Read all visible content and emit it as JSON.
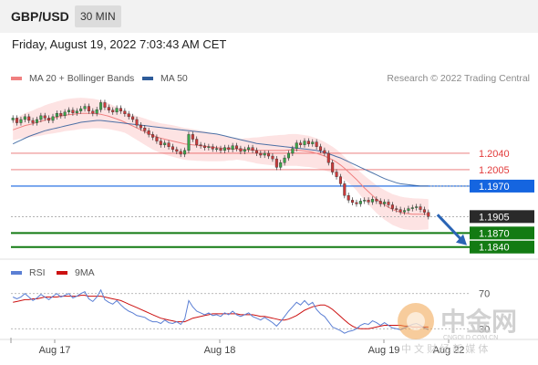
{
  "header": {
    "pair": "GBP/USD",
    "timeframe": "30 MIN"
  },
  "date_line": "Friday, August 19, 2022 7:03:43 AM CET",
  "legend": {
    "bollinger_label": "MA 20 + Bollinger Bands",
    "ma50_label": "MA 50",
    "copyright": "Research © 2022 Trading Central",
    "rsi_label": "RSI",
    "rsi_ma_label": "9MA"
  },
  "colors": {
    "bollinger": "#f08080",
    "bollinger_band": "#fde3e3",
    "ma50": "#2e5c9a",
    "resistance": "#e23b3b",
    "pivot": "#1565e0",
    "current": "#2a2a2a",
    "support": "#137b13",
    "rsi": "#5b7fd4",
    "rsi_ma": "#cc1111",
    "candle_up": "#3aa64a",
    "candle_down": "#cc3a3a",
    "arrow": "#2a64b5"
  },
  "watermark": {
    "text": "中金网",
    "sub": "CNGOLD.COM.CN",
    "tag": "中 文 财 经 新 媒 体"
  },
  "chart_data": {
    "type": "candlestick",
    "title": "GBP/USD",
    "x_ticks": [
      "Aug 17",
      "Aug 18",
      "Aug 19",
      "Aug 22"
    ],
    "ylim": [
      1.1822,
      1.218
    ],
    "levels": [
      {
        "value": 1.204,
        "label": "1.2040",
        "kind": "resistance"
      },
      {
        "value": 1.2005,
        "label": "1.2005",
        "kind": "resistance"
      },
      {
        "value": 1.197,
        "label": "1.1970",
        "kind": "pivot"
      },
      {
        "value": 1.1905,
        "label": "1.1905",
        "kind": "current"
      },
      {
        "value": 1.187,
        "label": "1.1870",
        "kind": "support"
      },
      {
        "value": 1.184,
        "label": "1.1840",
        "kind": "support"
      }
    ],
    "closes": [
      1.2115,
      1.2105,
      1.2112,
      1.2118,
      1.211,
      1.2105,
      1.2112,
      1.212,
      1.2115,
      1.211,
      1.2118,
      1.2125,
      1.212,
      1.2128,
      1.2132,
      1.2126,
      1.213,
      1.2135,
      1.214,
      1.213,
      1.2125,
      1.2133,
      1.2148,
      1.2138,
      1.2132,
      1.2128,
      1.2136,
      1.213,
      1.2124,
      1.2118,
      1.2112,
      1.21,
      1.2094,
      1.2088,
      1.208,
      1.2074,
      1.2066,
      1.2058,
      1.2062,
      1.2054,
      1.2048,
      1.2044,
      1.2038,
      1.2046,
      1.208,
      1.207,
      1.2058,
      1.2056,
      1.2052,
      1.2054,
      1.2049,
      1.205,
      1.2046,
      1.2052,
      1.2048,
      1.2056,
      1.205,
      1.2044,
      1.2048,
      1.2052,
      1.2046,
      1.204,
      1.2036,
      1.204,
      1.2034,
      1.2028,
      1.201,
      1.202,
      1.203,
      1.204,
      1.205,
      1.2062,
      1.2058,
      1.2066,
      1.206,
      1.2064,
      1.2054,
      1.2046,
      1.204,
      1.202,
      1.2,
      1.199,
      1.1975,
      1.195,
      1.194,
      1.1935,
      1.1932,
      1.1938,
      1.194,
      1.1936,
      1.1942,
      1.1938,
      1.1932,
      1.1936,
      1.193,
      1.1922,
      1.192,
      1.1915,
      1.1918,
      1.1922,
      1.1924,
      1.1926,
      1.192,
      1.1914,
      1.1905
    ],
    "ma20": [
      1.209,
      1.2093,
      1.2096,
      1.2099,
      1.2101,
      1.2103,
      1.2106,
      1.2108,
      1.2111,
      1.2113,
      1.2115,
      1.2117,
      1.2119,
      1.2121,
      1.2122,
      1.2123,
      1.2124,
      1.2125,
      1.2125,
      1.2125,
      1.2125,
      1.2124,
      1.2123,
      1.2121,
      1.2119,
      1.2116,
      1.2113,
      1.211,
      1.2106,
      1.2102,
      1.2098,
      1.2094,
      1.209,
      1.2086,
      1.2082,
      1.2078,
      1.2075,
      1.2072,
      1.207,
      1.2068,
      1.2066,
      1.2064,
      1.2062,
      1.206,
      1.2059,
      1.2058,
      1.2057,
      1.2056,
      1.2055,
      1.2054,
      1.2053,
      1.2052,
      1.2051,
      1.205,
      1.205,
      1.2049,
      1.2049,
      1.2048,
      1.2048,
      1.2047,
      1.2047,
      1.2046,
      1.2046,
      1.2046,
      1.2046,
      1.2046,
      1.2046,
      1.2046,
      1.2046,
      1.2047,
      1.2047,
      1.2047,
      1.2046,
      1.2045,
      1.2044,
      1.2042,
      1.204,
      1.2037,
      1.2034,
      1.203,
      1.2026,
      1.2021,
      1.2015,
      1.2008,
      1.2,
      1.1992,
      1.1984,
      1.1975,
      1.1966,
      1.1958,
      1.195,
      1.1942,
      1.1936,
      1.193,
      1.1925,
      1.192,
      1.1917,
      1.1914,
      1.1912,
      1.1911,
      1.191,
      1.191,
      1.191,
      1.191,
      1.191
    ],
    "ma50": [
      1.206,
      1.2064,
      1.2068,
      1.2072,
      1.2076,
      1.2079,
      1.2082,
      1.2085,
      1.2088,
      1.209,
      1.2092,
      1.2094,
      1.2096,
      1.2098,
      1.21,
      1.2102,
      1.2104,
      1.2106,
      1.2107,
      1.2108,
      1.2109,
      1.211,
      1.211,
      1.2109,
      1.2108,
      1.2107,
      1.2106,
      1.2105,
      1.2104,
      1.2103,
      1.2102,
      1.2101,
      1.21,
      1.2099,
      1.2098,
      1.2097,
      1.2096,
      1.2095,
      1.2094,
      1.2093,
      1.2092,
      1.2091,
      1.209,
      1.2089,
      1.2088,
      1.2087,
      1.2086,
      1.2085,
      1.2084,
      1.2083,
      1.2082,
      1.2081,
      1.2079,
      1.2077,
      1.2075,
      1.2073,
      1.2071,
      1.2069,
      1.2067,
      1.2065,
      1.2063,
      1.2061,
      1.206,
      1.2059,
      1.2058,
      1.2057,
      1.2056,
      1.2055,
      1.2054,
      1.2053,
      1.2052,
      1.2051,
      1.205,
      1.2049,
      1.2048,
      1.2047,
      1.2046,
      1.2044,
      1.2042,
      1.2039,
      1.2036,
      1.2033,
      1.203,
      1.2026,
      1.2022,
      1.2018,
      1.2014,
      1.201,
      1.2006,
      1.2002,
      1.1998,
      1.1994,
      1.199,
      1.1986,
      1.1983,
      1.198,
      1.1977,
      1.1975,
      1.1974,
      1.1973,
      1.1972,
      1.1971,
      1.197,
      1.197,
      1.197
    ],
    "rsi": {
      "ticks": [
        "70",
        "30"
      ],
      "ylim": [
        20,
        80
      ],
      "values": [
        66,
        64,
        66,
        70,
        66,
        62,
        65,
        69,
        66,
        63,
        67,
        70,
        66,
        68,
        70,
        65,
        67,
        70,
        72,
        64,
        61,
        66,
        74,
        63,
        60,
        58,
        62,
        57,
        53,
        50,
        48,
        45,
        44,
        43,
        40,
        38,
        38,
        36,
        40,
        37,
        36,
        38,
        35,
        41,
        62,
        55,
        50,
        48,
        46,
        48,
        45,
        46,
        44,
        48,
        46,
        50,
        46,
        44,
        46,
        48,
        44,
        42,
        40,
        43,
        40,
        37,
        33,
        38,
        44,
        50,
        55,
        60,
        57,
        62,
        57,
        60,
        52,
        47,
        44,
        38,
        32,
        30,
        28,
        25,
        27,
        28,
        30,
        34,
        36,
        35,
        39,
        37,
        34,
        37,
        34,
        31,
        30,
        29,
        31,
        33,
        35,
        36,
        34,
        31,
        29
      ],
      "ma9": [
        60,
        61,
        62,
        63,
        63,
        64,
        64,
        65,
        66,
        66,
        66,
        66,
        67,
        67,
        67,
        67,
        67,
        68,
        68,
        67,
        67,
        67,
        67,
        66,
        65,
        64,
        63,
        62,
        60,
        58,
        56,
        54,
        52,
        50,
        48,
        46,
        44,
        42,
        41,
        40,
        39,
        38,
        38,
        38,
        40,
        42,
        43,
        44,
        45,
        46,
        47,
        47,
        47,
        47,
        47,
        47,
        47,
        46,
        46,
        46,
        46,
        45,
        44,
        44,
        43,
        42,
        41,
        40,
        40,
        41,
        43,
        45,
        48,
        51,
        53,
        55,
        56,
        57,
        57,
        55,
        52,
        48,
        44,
        40,
        36,
        33,
        31,
        30,
        30,
        30,
        31,
        32,
        33,
        34,
        34,
        34,
        34,
        34,
        33,
        33,
        32,
        32,
        32,
        32,
        32
      ]
    }
  }
}
